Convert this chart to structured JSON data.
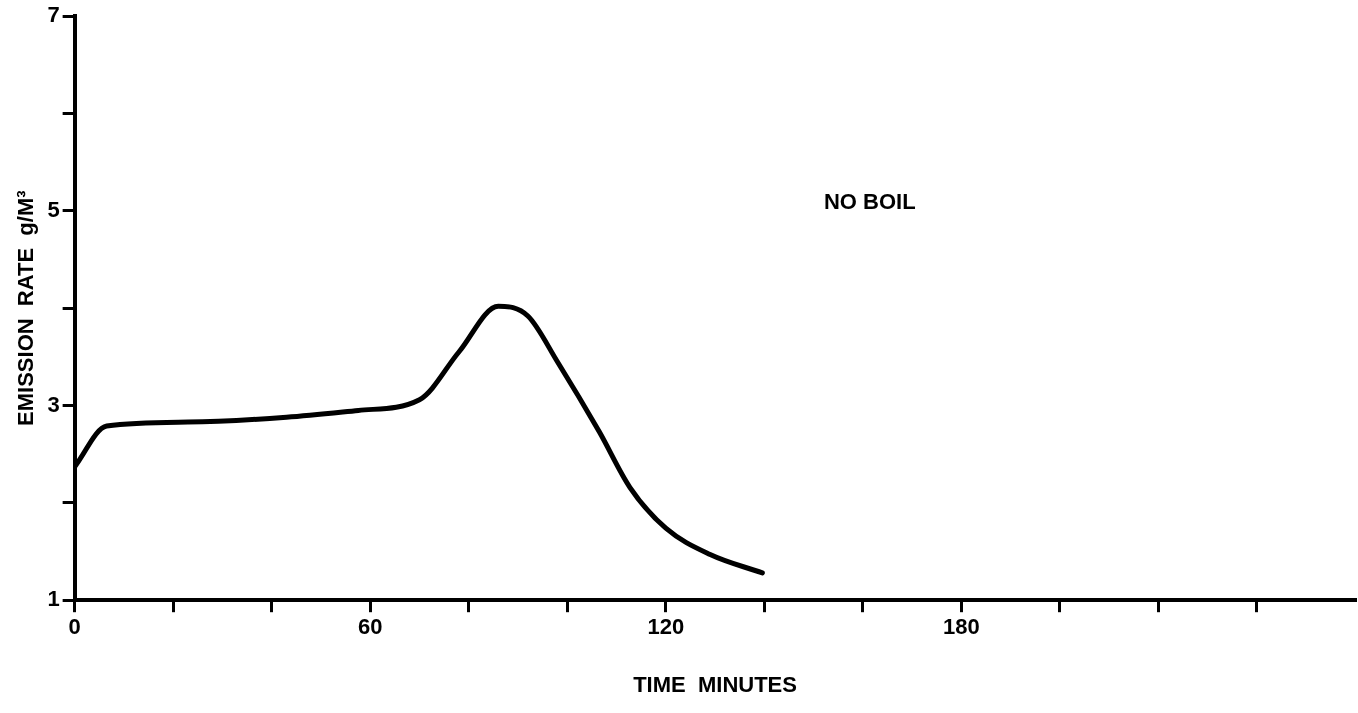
{
  "chart_data": {
    "type": "line",
    "xlabel": "TIME  MINUTES",
    "ylabel": "EMISSION  RATE  g/M³",
    "x": [
      0,
      6.5,
      23,
      43,
      57.6,
      70,
      78,
      86,
      92,
      98,
      106.5,
      112.7,
      120,
      129,
      139.6
    ],
    "series": [
      {
        "color": "#000000",
        "values": [
          2.37,
          2.79,
          2.83,
          2.88,
          2.95,
          3.06,
          3.55,
          4.02,
          3.92,
          3.45,
          2.73,
          2.16,
          1.74,
          1.47,
          1.28
        ]
      }
    ],
    "xlim": [
      0,
      260
    ],
    "xticks": [
      0,
      {
        "value": 20,
        "label": null
      },
      {
        "value": 40,
        "label": null
      },
      60,
      {
        "value": 80,
        "label": null
      },
      {
        "value": 100,
        "label": null
      },
      120,
      {
        "value": 140,
        "label": null
      },
      {
        "value": 160,
        "label": null
      },
      180,
      {
        "value": 200,
        "label": null
      },
      {
        "value": 220,
        "label": null
      },
      {
        "value": 240,
        "label": null
      }
    ],
    "ylim": [
      1,
      7
    ],
    "yticks": [
      1,
      {
        "value": 2,
        "label": null
      },
      3,
      {
        "value": 4,
        "label": null
      },
      5,
      {
        "value": 6,
        "label": null
      },
      7
    ],
    "annotations": [
      "NO BOIL"
    ],
    "grid": false,
    "legend": false,
    "marker": "none",
    "line_style": "solid"
  }
}
